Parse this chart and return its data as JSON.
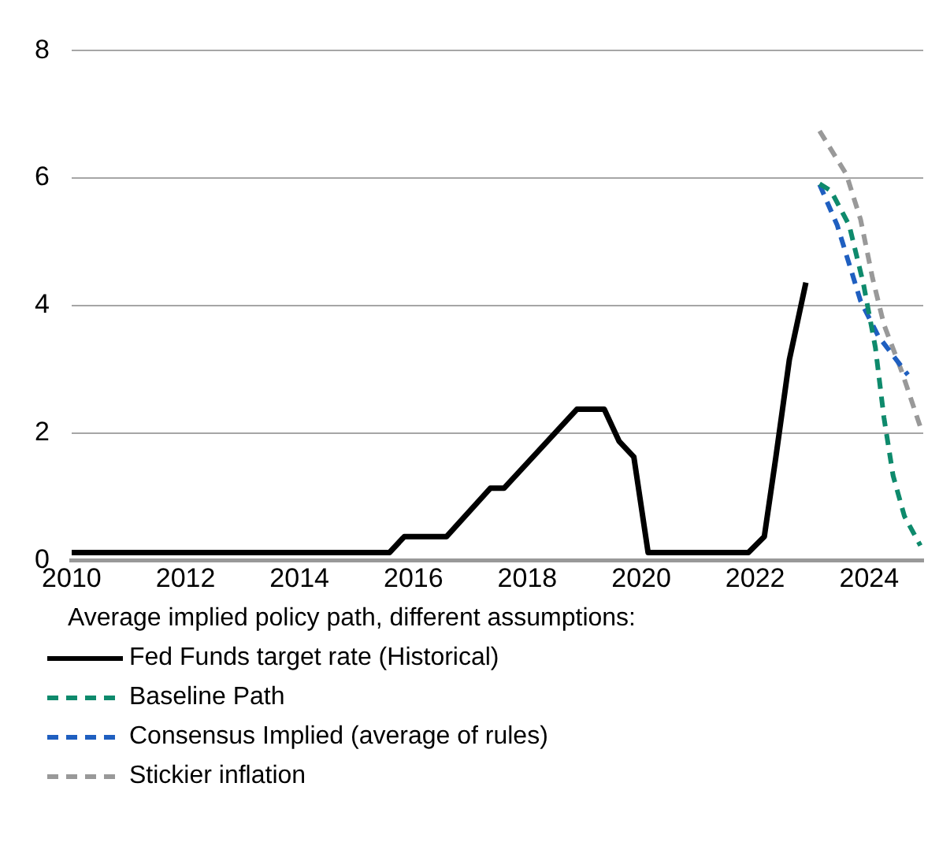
{
  "chart_data": {
    "type": "line",
    "legend_title": "Average implied policy path, different assumptions:",
    "legend": "bottom",
    "grid": "y",
    "marker": "none",
    "xlim": [
      2010,
      2024.95
    ],
    "xticks": [
      2010,
      2012,
      2014,
      2016,
      2018,
      2020,
      2022,
      2024
    ],
    "ylim": [
      0,
      8
    ],
    "yticks": [
      0,
      2,
      4,
      6,
      8
    ],
    "series": [
      {
        "name": "Fed Funds target rate (Historical)",
        "color": "#000000",
        "line_style": "solid",
        "x": [
          2010,
          2015.58,
          2015.84,
          2016.58,
          2017.35,
          2017.59,
          2018.87,
          2019.35,
          2019.61,
          2019.87,
          2020.12,
          2021.88,
          2022.16,
          2022.36,
          2022.6,
          2022.89
        ],
        "values": [
          0.12,
          0.12,
          0.37,
          0.37,
          1.13,
          1.13,
          2.37,
          2.37,
          1.87,
          1.62,
          0.12,
          0.12,
          0.37,
          1.6,
          3.15,
          4.36
        ]
      },
      {
        "name": "Baseline Path",
        "color": "#0e8a6c",
        "line_style": "dashed",
        "x": [
          2023.13,
          2023.33,
          2023.65,
          2023.9,
          2024.11,
          2024.26,
          2024.42,
          2024.62,
          2024.9
        ],
        "values": [
          5.91,
          5.8,
          5.26,
          4.34,
          3.34,
          2.24,
          1.33,
          0.69,
          0.23
        ]
      },
      {
        "name": "Consensus Implied (average of rules)",
        "color": "#1f5fc0",
        "line_style": "dashed",
        "x": [
          2023.13,
          2023.44,
          2023.85,
          2024.16,
          2024.68
        ],
        "values": [
          5.9,
          5.26,
          4.07,
          3.52,
          2.91
        ]
      },
      {
        "name": "Stickier inflation",
        "color": "#999999",
        "line_style": "dashed",
        "x": [
          2023.13,
          2023.6,
          2023.85,
          2024.06,
          2024.26,
          2024.57,
          2024.93
        ],
        "values": [
          6.74,
          6.06,
          5.35,
          4.43,
          3.7,
          2.97,
          2.01
        ]
      }
    ]
  }
}
